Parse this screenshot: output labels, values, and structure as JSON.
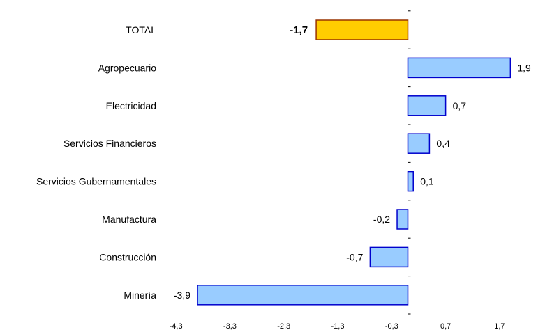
{
  "chart_data": {
    "type": "bar",
    "orientation": "horizontal",
    "categories": [
      "TOTAL",
      "Agropecuario",
      "Electricidad",
      "Servicios Financieros",
      "Servicios Gubernamentales",
      "Manufactura",
      "Construcción",
      "Minería"
    ],
    "values": [
      -1.7,
      1.9,
      0.7,
      0.4,
      0.1,
      -0.2,
      -0.7,
      -3.9
    ],
    "value_labels": [
      "-1,7",
      "1,9",
      "0,7",
      "0,4",
      "0,1",
      "-0,2",
      "-0,7",
      "-3,9"
    ],
    "highlight_index": 0,
    "xlim": [
      -4.3,
      2.7
    ],
    "x_ticks": [
      -4.3,
      -3.3,
      -2.3,
      -1.3,
      -0.3,
      0.7,
      1.7
    ],
    "x_tick_labels": [
      "-4,3",
      "-3,3",
      "-2,3",
      "-1,3",
      "-0,3",
      "0,7",
      "1,7"
    ],
    "grid": false,
    "legend": "none",
    "title": "",
    "xlabel": "",
    "ylabel": "",
    "colors": {
      "bar_fill": "#99CCFF",
      "bar_stroke": "#0000CC",
      "highlight_fill": "#FFCC00",
      "highlight_stroke": "#993300",
      "axis": "#000000"
    }
  }
}
